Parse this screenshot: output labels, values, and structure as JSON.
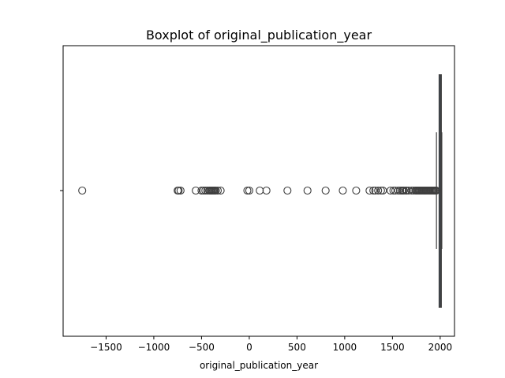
{
  "chart_data": {
    "type": "boxplot",
    "title": "Boxplot of original_publication_year",
    "xlabel": "original_publication_year",
    "ylabel": "",
    "xlim": [
      -1950,
      2150
    ],
    "xticks": [
      -1500,
      -1000,
      -500,
      0,
      500,
      1000,
      1500,
      2000
    ],
    "xtick_labels": [
      "−1500",
      "−1000",
      "−500",
      "0",
      "500",
      "1000",
      "1500",
      "2000"
    ],
    "grid": false,
    "legend": "none",
    "box": {
      "q1": 1990,
      "median": 2004,
      "q3": 2011,
      "whisker_low": 1961,
      "whisker_high": 2017
    },
    "outliers": [
      -1750,
      -750,
      -740,
      -720,
      -560,
      -500,
      -480,
      -460,
      -440,
      -420,
      -410,
      -400,
      -390,
      -380,
      -370,
      -360,
      -350,
      -330,
      -300,
      -20,
      0,
      110,
      180,
      400,
      610,
      800,
      980,
      1120,
      1260,
      1300,
      1320,
      1350,
      1380,
      1400,
      1480,
      1510,
      1530,
      1560,
      1580,
      1600,
      1610,
      1620,
      1640,
      1650,
      1670,
      1700,
      1720,
      1740,
      1750,
      1760,
      1770,
      1780,
      1790,
      1800,
      1810,
      1820,
      1830,
      1840,
      1850,
      1860,
      1870,
      1880,
      1890,
      1900,
      1910,
      1920,
      1930,
      1940,
      1950,
      1955,
      1958
    ],
    "colors": {
      "box_fill": "#3b75af",
      "line": "#3f3f3f"
    }
  }
}
